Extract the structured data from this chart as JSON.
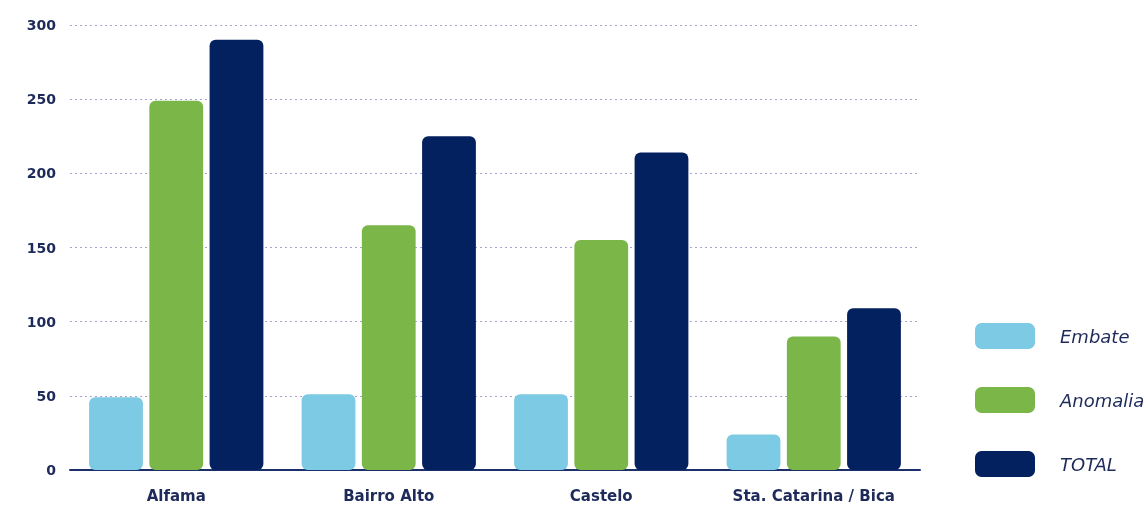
{
  "chart_data": {
    "type": "bar",
    "categories": [
      "Alfama",
      "Bairro Alto",
      "Castelo",
      "Sta. Catarina / Bica"
    ],
    "series": [
      {
        "name": "Embate",
        "color": "#7ccae3",
        "values": [
          49,
          51,
          51,
          24
        ]
      },
      {
        "name": "Anomalia",
        "color": "#7ab648",
        "values": [
          249,
          165,
          155,
          90
        ]
      },
      {
        "name": "TOTAL",
        "color": "#03205f",
        "values": [
          290,
          225,
          214,
          109
        ]
      }
    ],
    "ylim": [
      0,
      300
    ],
    "yticks": [
      0,
      50,
      100,
      150,
      200,
      250,
      300
    ],
    "grid": "y",
    "legend": "right"
  }
}
